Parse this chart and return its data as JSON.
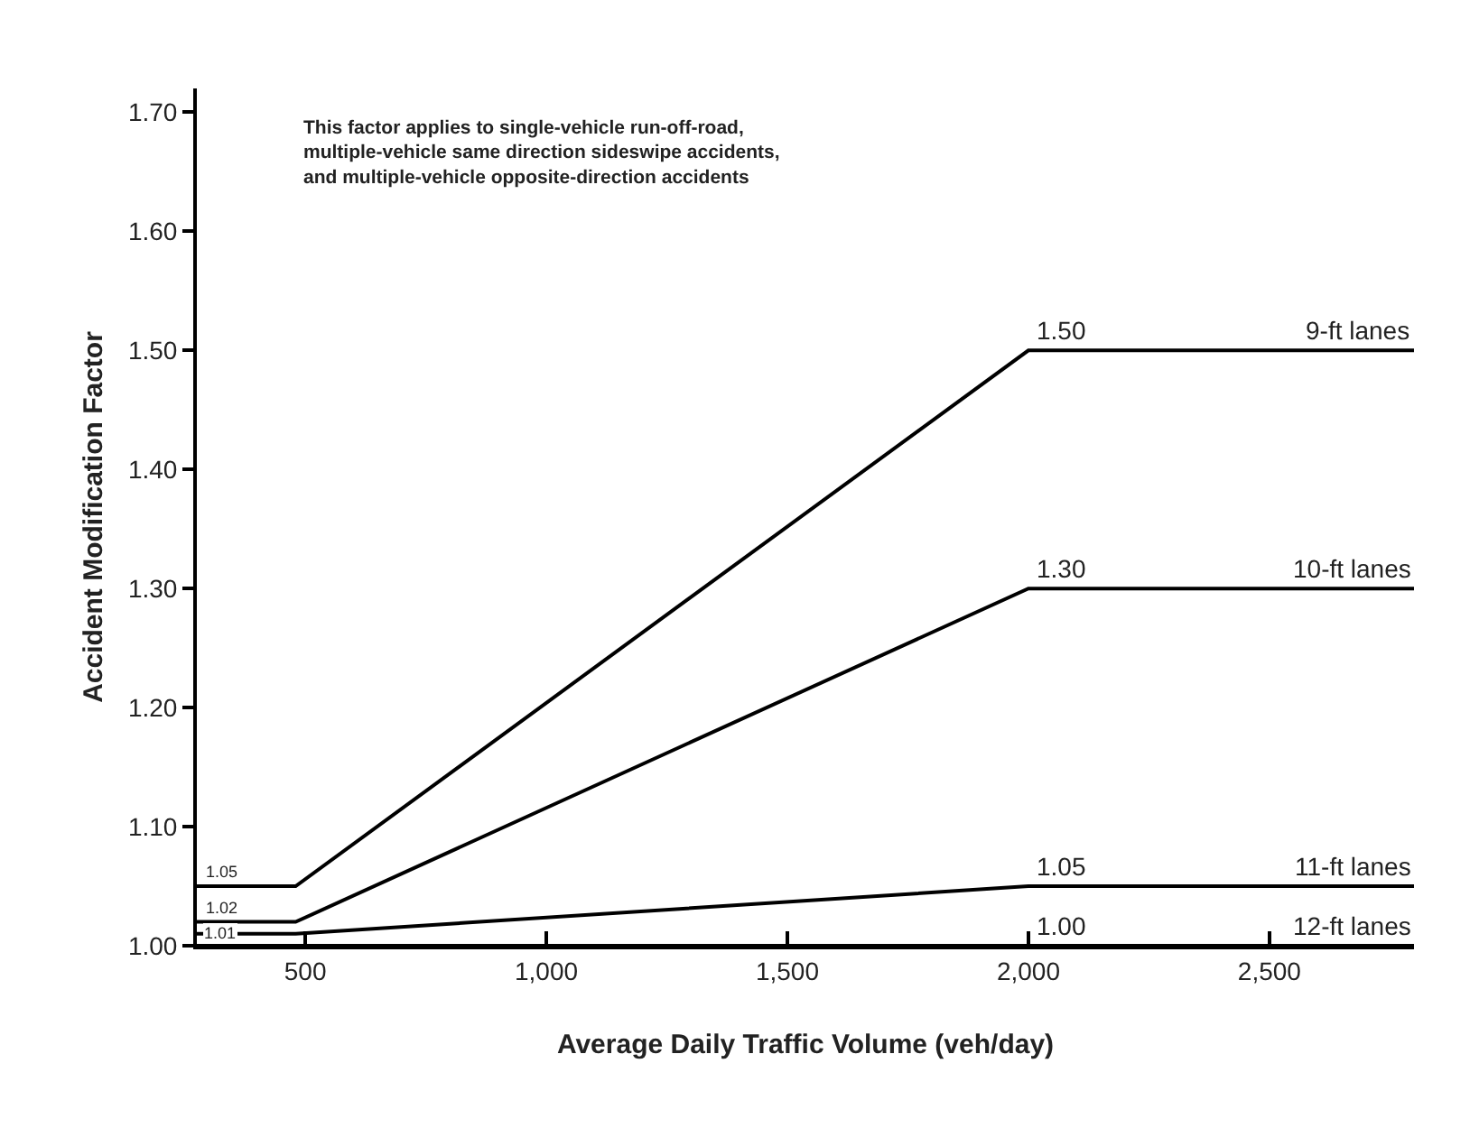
{
  "chart_data": {
    "type": "line",
    "xlabel": "Average Daily Traffic Volume (veh/day)",
    "ylabel": "Accident Modification Factor",
    "x": [
      275,
      480,
      2000,
      2800
    ],
    "series": [
      {
        "name": "9-ft lanes",
        "color": "#000000",
        "values": [
          1.05,
          1.05,
          1.5,
          1.5
        ],
        "value_labels": [
          "1.05",
          null,
          "1.50",
          null
        ]
      },
      {
        "name": "10-ft lanes",
        "color": "#000000",
        "values": [
          1.02,
          1.02,
          1.3,
          1.3
        ],
        "value_labels": [
          "1.02",
          null,
          "1.30",
          null
        ]
      },
      {
        "name": "11-ft lanes",
        "color": "#000000",
        "values": [
          1.01,
          1.01,
          1.05,
          1.05
        ],
        "value_labels": [
          "1.01",
          null,
          "1.05",
          null
        ]
      },
      {
        "name": "12-ft lanes",
        "color": "#000000",
        "values": [
          1.0,
          1.0,
          1.0,
          1.0
        ],
        "value_labels": [
          null,
          null,
          "1.00",
          null
        ]
      }
    ],
    "annotations": [
      "This factor applies to single-vehicle run-off-road,\nmultiple-vehicle same direction sideswipe accidents,\nand multiple-vehicle opposite-direction accidents"
    ],
    "xlim": [
      275,
      2800
    ],
    "xticks": [
      500,
      {
        "value": 1000,
        "label": "1,000"
      },
      {
        "value": 1500,
        "label": "1,500"
      },
      {
        "value": 2000,
        "label": "2,000"
      },
      {
        "value": 2500,
        "label": "2,500"
      }
    ],
    "ylim": [
      1.0,
      1.72
    ],
    "yticks": [
      {
        "value": 1.0,
        "label": "1.00"
      },
      {
        "value": 1.1,
        "label": "1.10"
      },
      {
        "value": 1.2,
        "label": "1.20"
      },
      {
        "value": 1.3,
        "label": "1.30"
      },
      {
        "value": 1.4,
        "label": "1.40"
      },
      {
        "value": 1.5,
        "label": "1.50"
      },
      {
        "value": 1.6,
        "label": "1.60"
      },
      {
        "value": 1.7,
        "label": "1.70"
      }
    ],
    "grid": false,
    "legend": "right",
    "marker": "none",
    "line_style": "solid"
  }
}
